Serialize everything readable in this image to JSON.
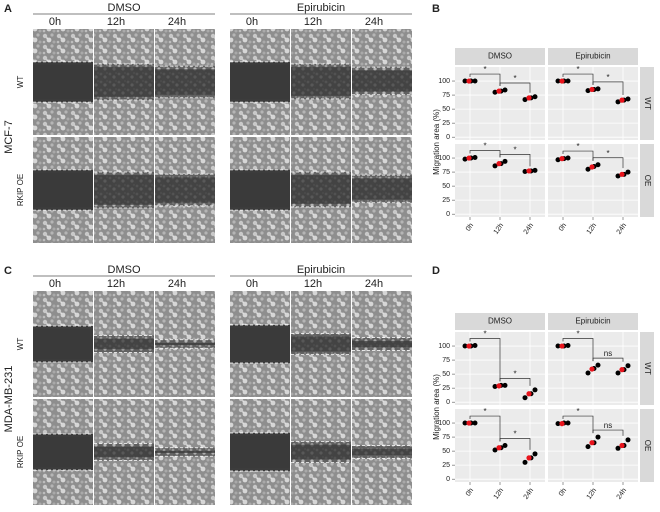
{
  "image_panels": [
    {
      "panel_label": "A",
      "cell_line": "MCF-7",
      "groups": [
        "DMSO",
        "Epirubicin"
      ],
      "times": [
        "0h",
        "12h",
        "24h"
      ],
      "rows": [
        "WT",
        "RKIP OE"
      ]
    },
    {
      "panel_label": "C",
      "cell_line": "MDA-MB-231",
      "groups": [
        "DMSO",
        "Epirubicin"
      ],
      "times": [
        "0h",
        "12h",
        "24h"
      ],
      "rows": [
        "WT",
        "RKIP OE"
      ]
    }
  ],
  "chart_data": [
    {
      "type": "strip",
      "panel_label": "B",
      "ylabel": "Migration area (%)",
      "categories": [
        "0h",
        "12h",
        "24h"
      ],
      "ylim": [
        -5,
        125
      ],
      "yticks": [
        0,
        25,
        50,
        75,
        100
      ],
      "rows": [
        "WT",
        "OE"
      ],
      "point_color": "#000000",
      "mean_color": "#e8141c",
      "columns": [
        {
          "name": "DMSO",
          "facets": [
            {
              "points": [
                [
                  100,
                  100,
                  100
                ],
                [
                  80,
                  82,
                  84
                ],
                [
                  67,
                  70,
                  72
                ]
              ],
              "means": [
                100,
                82,
                70
              ],
              "significance": [
                "*",
                "*"
              ]
            },
            {
              "points": [
                [
                  98,
                  100,
                  101
                ],
                [
                  86,
                  90,
                  94
                ],
                [
                  76,
                  77,
                  78
                ]
              ],
              "means": [
                100,
                90,
                77
              ],
              "significance": [
                "*",
                "*"
              ]
            }
          ]
        },
        {
          "name": "Epirubicin",
          "facets": [
            {
              "points": [
                [
                  100,
                  100,
                  100
                ],
                [
                  83,
                  85,
                  86
                ],
                [
                  63,
                  66,
                  68
                ]
              ],
              "means": [
                100,
                85,
                66
              ],
              "significance": [
                "*",
                "*"
              ]
            },
            {
              "points": [
                [
                  97,
                  99,
                  100
                ],
                [
                  80,
                  85,
                  88
                ],
                [
                  68,
                  71,
                  75
                ]
              ],
              "means": [
                99,
                84,
                71
              ],
              "significance": [
                "*",
                "*"
              ]
            }
          ]
        }
      ]
    },
    {
      "type": "strip",
      "panel_label": "D",
      "ylabel": "Migration area (%)",
      "categories": [
        "0h",
        "12h",
        "24h"
      ],
      "ylim": [
        -5,
        125
      ],
      "yticks": [
        0,
        25,
        50,
        75,
        100
      ],
      "rows": [
        "WT",
        "OE"
      ],
      "point_color": "#000000",
      "mean_color": "#e8141c",
      "columns": [
        {
          "name": "DMSO",
          "facets": [
            {
              "points": [
                [
                  100,
                  100,
                  101
                ],
                [
                  28,
                  30,
                  30
                ],
                [
                  8,
                  15,
                  22
                ]
              ],
              "means": [
                100,
                29,
                15
              ],
              "significance": [
                "*",
                "*"
              ]
            },
            {
              "points": [
                [
                  100,
                  100,
                  100
                ],
                [
                  52,
                  56,
                  60
                ],
                [
                  30,
                  38,
                  45
                ]
              ],
              "means": [
                100,
                56,
                38
              ],
              "significance": [
                "*",
                "*"
              ]
            }
          ]
        },
        {
          "name": "Epirubicin",
          "facets": [
            {
              "points": [
                [
                  100,
                  100,
                  101
                ],
                [
                  52,
                  60,
                  66
                ],
                [
                  52,
                  58,
                  65
                ]
              ],
              "means": [
                100,
                59,
                58
              ],
              "significance": [
                "*",
                "ns"
              ]
            },
            {
              "points": [
                [
                  99,
                  100,
                  100
                ],
                [
                  58,
                  65,
                  75
                ],
                [
                  55,
                  60,
                  70
                ]
              ],
              "means": [
                99,
                65,
                60
              ],
              "significance": [
                "*",
                "ns"
              ]
            }
          ]
        }
      ]
    }
  ]
}
